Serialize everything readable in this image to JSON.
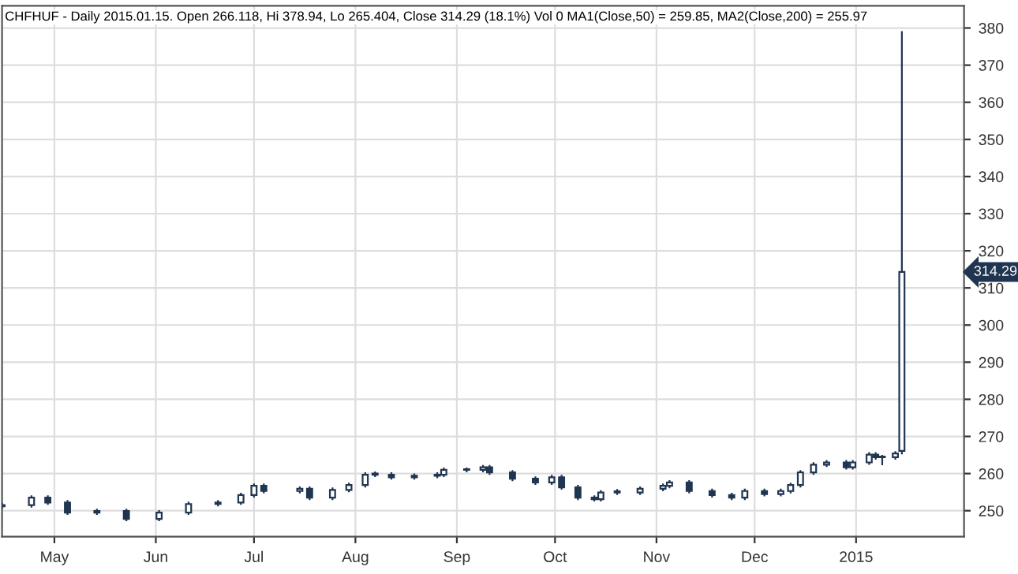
{
  "chart_data": {
    "type": "candlestick",
    "title": "CHFHUF - Daily 2015.01.15. Open 266.118, Hi 378.94, Lo 265.404, Close 314.29 (18.1%) Vol 0 MA1(Close,50) = 259.85, MA2(Close,200) = 255.97",
    "x": [
      "2014-04-15",
      "2014-04-24",
      "2014-04-29",
      "2014-05-05",
      "2014-05-14",
      "2014-05-23",
      "2014-06-02",
      "2014-06-11",
      "2014-06-20",
      "2014-06-27",
      "2014-07-01",
      "2014-07-04",
      "2014-07-15",
      "2014-07-18",
      "2014-07-25",
      "2014-07-30",
      "2014-08-04",
      "2014-08-07",
      "2014-08-12",
      "2014-08-19",
      "2014-08-26",
      "2014-08-28",
      "2014-09-04",
      "2014-09-09",
      "2014-09-11",
      "2014-09-18",
      "2014-09-25",
      "2014-09-30",
      "2014-10-03",
      "2014-10-08",
      "2014-10-13",
      "2014-10-15",
      "2014-10-20",
      "2014-10-27",
      "2014-11-03",
      "2014-11-05",
      "2014-11-11",
      "2014-11-18",
      "2014-11-24",
      "2014-11-28",
      "2014-12-04",
      "2014-12-09",
      "2014-12-12",
      "2014-12-15",
      "2014-12-19",
      "2014-12-23",
      "2014-12-29",
      "2014-12-31",
      "2015-01-05",
      "2015-01-07",
      "2015-01-09",
      "2015-01-13",
      "2015-01-15"
    ],
    "ohlc": [
      [
        251.2,
        251.9,
        250.8,
        251.5
      ],
      [
        251.5,
        253.9,
        251.1,
        253.5
      ],
      [
        253.5,
        253.9,
        251.8,
        252.2
      ],
      [
        252.2,
        252.6,
        249.1,
        249.5
      ],
      [
        249.5,
        250.3,
        249.1,
        249.9
      ],
      [
        249.9,
        250.3,
        247.4,
        247.8
      ],
      [
        247.8,
        249.9,
        247.4,
        249.5
      ],
      [
        249.5,
        252.2,
        249.1,
        251.8
      ],
      [
        251.8,
        252.6,
        251.4,
        252.2
      ],
      [
        252.2,
        254.6,
        251.8,
        254.2
      ],
      [
        254.2,
        257.1,
        253.8,
        256.7
      ],
      [
        256.7,
        257.1,
        254.9,
        255.3
      ],
      [
        255.3,
        256.3,
        254.9,
        255.9
      ],
      [
        255.9,
        256.3,
        253.1,
        253.5
      ],
      [
        253.5,
        256.0,
        253.1,
        255.6
      ],
      [
        255.6,
        257.3,
        255.2,
        256.9
      ],
      [
        256.9,
        260.1,
        256.5,
        259.7
      ],
      [
        259.7,
        260.3,
        259.3,
        260.0
      ],
      [
        259.7,
        260.1,
        258.6,
        259.0
      ],
      [
        259.0,
        259.8,
        258.6,
        259.4
      ],
      [
        259.4,
        260.1,
        259.0,
        259.7
      ],
      [
        259.7,
        261.4,
        259.3,
        261.0
      ],
      [
        261.0,
        261.4,
        260.6,
        261.0
      ],
      [
        261.0,
        262.1,
        260.6,
        261.7
      ],
      [
        261.7,
        262.1,
        259.9,
        260.3
      ],
      [
        260.3,
        260.7,
        258.2,
        258.6
      ],
      [
        258.6,
        259.0,
        257.2,
        257.6
      ],
      [
        257.6,
        259.4,
        257.2,
        259.0
      ],
      [
        259.0,
        259.4,
        255.9,
        256.3
      ],
      [
        256.3,
        256.7,
        253.1,
        253.5
      ],
      [
        253.5,
        253.9,
        252.7,
        253.1
      ],
      [
        253.1,
        255.3,
        252.7,
        254.9
      ],
      [
        254.9,
        255.6,
        254.5,
        255.2
      ],
      [
        254.9,
        256.3,
        254.5,
        255.9
      ],
      [
        255.9,
        257.1,
        255.5,
        256.7
      ],
      [
        256.7,
        258.0,
        256.3,
        257.6
      ],
      [
        257.6,
        258.0,
        254.9,
        255.3
      ],
      [
        255.3,
        255.7,
        253.8,
        254.2
      ],
      [
        254.2,
        254.6,
        253.1,
        253.5
      ],
      [
        253.5,
        255.7,
        253.1,
        255.3
      ],
      [
        255.3,
        255.7,
        254.1,
        254.5
      ],
      [
        254.5,
        255.7,
        254.1,
        255.3
      ],
      [
        255.3,
        257.3,
        254.9,
        256.9
      ],
      [
        256.9,
        260.7,
        256.5,
        260.3
      ],
      [
        260.3,
        262.8,
        259.9,
        262.4
      ],
      [
        262.4,
        263.4,
        262.0,
        263.0
      ],
      [
        263.0,
        263.4,
        261.3,
        261.7
      ],
      [
        261.7,
        263.4,
        261.3,
        263.0
      ],
      [
        263.0,
        265.5,
        262.6,
        265.1
      ],
      [
        265.1,
        265.5,
        264.0,
        264.4
      ],
      [
        264.4,
        264.8,
        262.5,
        264.4
      ],
      [
        264.4,
        265.8,
        264.0,
        265.4
      ],
      [
        266.118,
        378.94,
        265.404,
        314.29
      ]
    ],
    "color": "#1f3550",
    "xlim": [
      "2014-04-15",
      "2015-02-03"
    ],
    "xticks": [
      {
        "value": "2014-05-01",
        "label": "May"
      },
      {
        "value": "2014-06-01",
        "label": "Jun"
      },
      {
        "value": "2014-07-01",
        "label": "Jul"
      },
      {
        "value": "2014-08-01",
        "label": "Aug"
      },
      {
        "value": "2014-09-01",
        "label": "Sep"
      },
      {
        "value": "2014-10-01",
        "label": "Oct"
      },
      {
        "value": "2014-11-01",
        "label": "Nov"
      },
      {
        "value": "2014-12-01",
        "label": "Dec"
      },
      {
        "value": "2015-01-01",
        "label": "2015"
      }
    ],
    "ylim": [
      243,
      386
    ],
    "yticks": [
      250,
      260,
      270,
      280,
      290,
      300,
      310,
      320,
      330,
      340,
      350,
      360,
      370,
      380
    ],
    "annotations": [
      "314.29"
    ],
    "grid": true
  }
}
